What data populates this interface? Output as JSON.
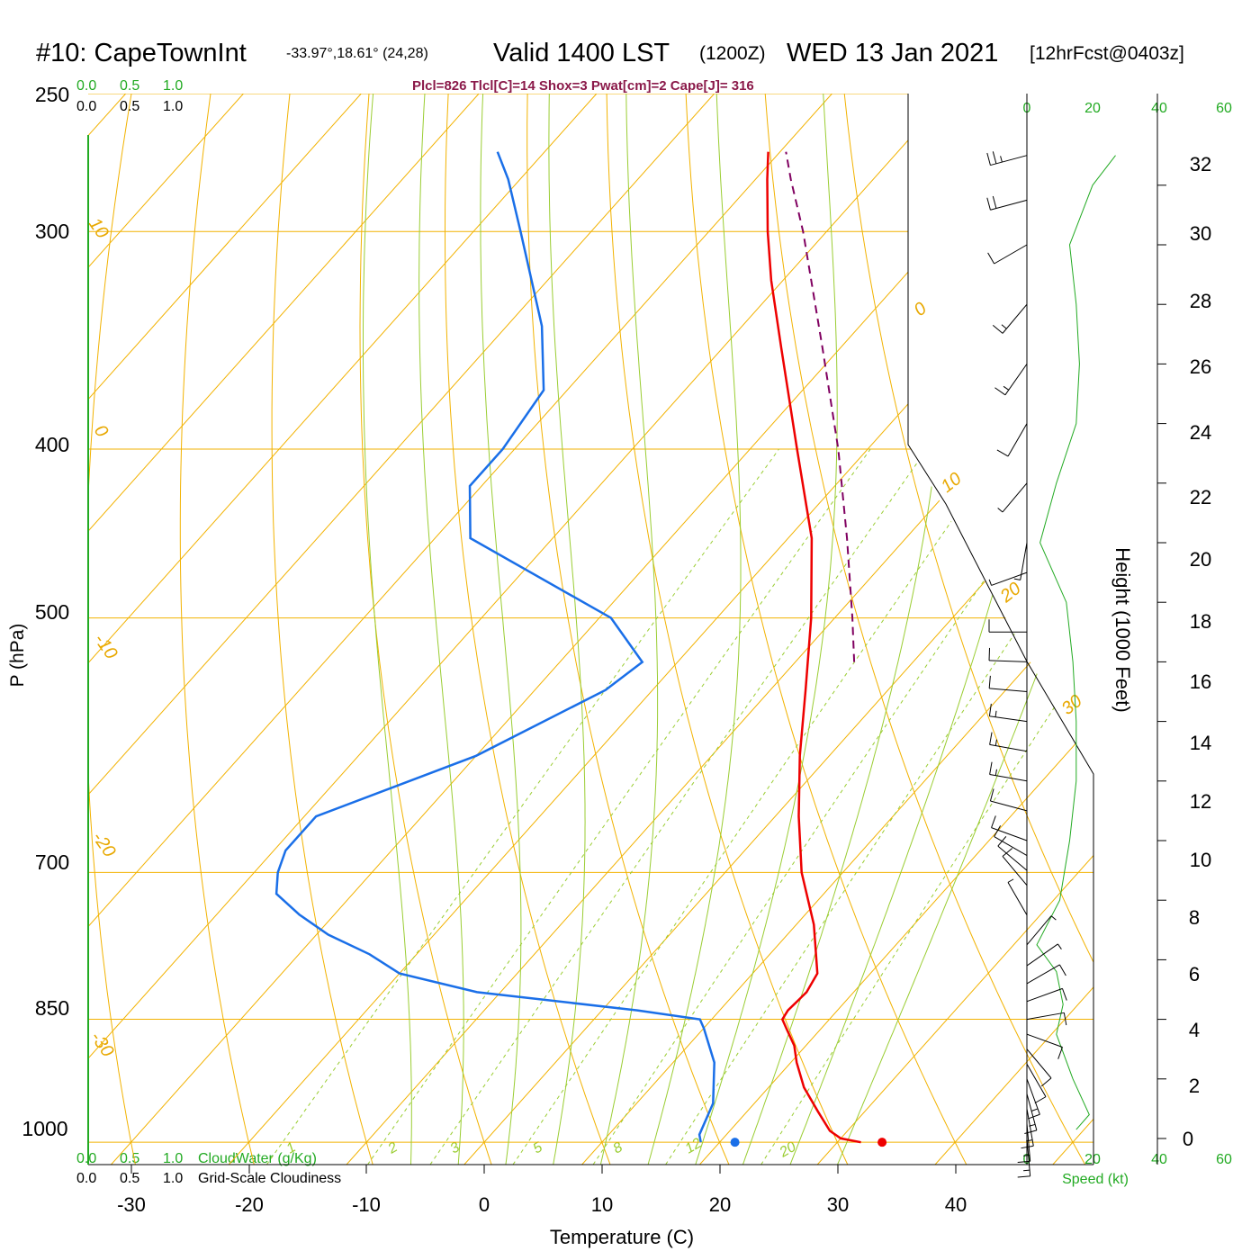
{
  "header": {
    "station": "#10: CapeTownInt",
    "coords": "-33.97°,18.61° (24,28)",
    "valid": "Valid 1400 LST",
    "zulu": "(1200Z)",
    "date": "WED 13 Jan 2021",
    "forecast": "[12hrFcst@0403z]"
  },
  "indices": "Plcl=826 Tlcl[C]=14 Shox=3 Pwat[cm]=2 Cape[J]= 316",
  "cloud_scale": {
    "top_green": [
      "0.0",
      "0.5",
      "1.0"
    ],
    "top_black": [
      "0.0",
      "0.5",
      "1.0"
    ],
    "bottom_green": [
      "0.0",
      "0.5",
      "1.0"
    ],
    "bottom_black": [
      "0.0",
      "0.5",
      "1.0"
    ],
    "cloudwater_label": "CloudWater (g/Kg)",
    "cloudiness_label": "Grid-Scale Cloudiness"
  },
  "wind_scale": {
    "top_ticks": [
      "0",
      "20",
      "40",
      "60"
    ],
    "bottom_ticks": [
      "0",
      "20",
      "40",
      "60"
    ],
    "label": "Speed (kt)"
  },
  "colors": {
    "isobar": "#f2b200",
    "isotherm": "#f2b200",
    "dry_adiabat": "#f2b200",
    "moist_adiabat": "#9acd32",
    "mixing_ratio": "#9acd32",
    "temperature": "#ee0000",
    "dewpoint": "#1a6fe8",
    "parcel": "#800060",
    "wind_speed": "#22aa22",
    "index_text": "#8b1a4a"
  },
  "chart_data": {
    "type": "skew-t log-p sounding",
    "xlabel": "Temperature (C)",
    "ylabel": "P (hPa)",
    "y2label": "Height (1000 Feet)",
    "x_ticks": [
      "-30",
      "-20",
      "-10",
      "0",
      "10",
      "20",
      "30",
      "40"
    ],
    "p_ticks": [
      "250",
      "300",
      "400",
      "500",
      "700",
      "850",
      "1000"
    ],
    "height_ticks": [
      "0",
      "2",
      "4",
      "6",
      "8",
      "10",
      "12",
      "14",
      "16",
      "18",
      "20",
      "22",
      "24",
      "26",
      "28",
      "30",
      "32"
    ],
    "isotherm_labels": [
      "10",
      "0",
      "-10",
      "-20",
      "-30"
    ],
    "isotherm_right_labels": [
      "0",
      "10",
      "20",
      "30"
    ],
    "mixing_ratio_labels": [
      "1",
      "2",
      "3",
      "5",
      "8",
      "12",
      "20"
    ],
    "xlim": [
      -34,
      36
    ],
    "plim": [
      1030,
      250
    ],
    "temperature": [
      {
        "p": 1000,
        "t": 32.0
      },
      {
        "p": 995,
        "t": 30.0
      },
      {
        "p": 985,
        "t": 28.5
      },
      {
        "p": 960,
        "t": 26.0
      },
      {
        "p": 930,
        "t": 23.0
      },
      {
        "p": 900,
        "t": 20.5
      },
      {
        "p": 880,
        "t": 19.0
      },
      {
        "p": 860,
        "t": 17.0
      },
      {
        "p": 850,
        "t": 16.0
      },
      {
        "p": 840,
        "t": 15.8
      },
      {
        "p": 820,
        "t": 16.0
      },
      {
        "p": 800,
        "t": 15.5
      },
      {
        "p": 750,
        "t": 11.5
      },
      {
        "p": 700,
        "t": 6.5
      },
      {
        "p": 650,
        "t": 2.0
      },
      {
        "p": 600,
        "t": -2.5
      },
      {
        "p": 550,
        "t": -7.0
      },
      {
        "p": 500,
        "t": -12.0
      },
      {
        "p": 450,
        "t": -18.0
      },
      {
        "p": 400,
        "t": -26.0
      },
      {
        "p": 350,
        "t": -35.0
      },
      {
        "p": 320,
        "t": -41.0
      },
      {
        "p": 300,
        "t": -45.0
      },
      {
        "p": 280,
        "t": -49.0
      },
      {
        "p": 270,
        "t": -51.0
      }
    ],
    "dewpoint": [
      {
        "p": 1000,
        "t": 18.4
      },
      {
        "p": 990,
        "t": 17.7
      },
      {
        "p": 950,
        "t": 16.5
      },
      {
        "p": 900,
        "t": 13.5
      },
      {
        "p": 860,
        "t": 10.0
      },
      {
        "p": 850,
        "t": 9.0
      },
      {
        "p": 840,
        "t": 3.0
      },
      {
        "p": 820,
        "t": -12.0
      },
      {
        "p": 800,
        "t": -20.0
      },
      {
        "p": 780,
        "t": -24.0
      },
      {
        "p": 760,
        "t": -29.0
      },
      {
        "p": 740,
        "t": -33.0
      },
      {
        "p": 720,
        "t": -36.5
      },
      {
        "p": 700,
        "t": -38.0
      },
      {
        "p": 680,
        "t": -39.0
      },
      {
        "p": 650,
        "t": -39.0
      },
      {
        "p": 600,
        "t": -30.0
      },
      {
        "p": 550,
        "t": -24.0
      },
      {
        "p": 530,
        "t": -23.0
      },
      {
        "p": 500,
        "t": -29.0
      },
      {
        "p": 450,
        "t": -47.0
      },
      {
        "p": 420,
        "t": -51.0
      },
      {
        "p": 400,
        "t": -51.0
      },
      {
        "p": 370,
        "t": -52.0
      },
      {
        "p": 340,
        "t": -57.0
      },
      {
        "p": 300,
        "t": -66.0
      },
      {
        "p": 280,
        "t": -71.0
      },
      {
        "p": 270,
        "t": -74.0
      }
    ],
    "parcel": [
      {
        "p": 530,
        "t": -5.0
      },
      {
        "p": 500,
        "t": -8.5
      },
      {
        "p": 450,
        "t": -15.0
      },
      {
        "p": 400,
        "t": -22.5
      },
      {
        "p": 350,
        "t": -31.5
      },
      {
        "p": 300,
        "t": -42.0
      },
      {
        "p": 280,
        "t": -47.0
      },
      {
        "p": 270,
        "t": -49.5
      }
    ],
    "surface_temperature": 33.8,
    "surface_dewpoint": 21.3,
    "wind_speed_kt": [
      {
        "h": 0.3,
        "s": 15
      },
      {
        "h": 0.8,
        "s": 19
      },
      {
        "h": 2.0,
        "s": 14
      },
      {
        "h": 3.5,
        "s": 9
      },
      {
        "h": 4.5,
        "s": 11
      },
      {
        "h": 5.6,
        "s": 9
      },
      {
        "h": 6.5,
        "s": 3
      },
      {
        "h": 8.0,
        "s": 10
      },
      {
        "h": 10.0,
        "s": 13
      },
      {
        "h": 12.0,
        "s": 15
      },
      {
        "h": 14.0,
        "s": 15
      },
      {
        "h": 16.0,
        "s": 14
      },
      {
        "h": 18.0,
        "s": 12
      },
      {
        "h": 20.0,
        "s": 4
      },
      {
        "h": 22.0,
        "s": 9
      },
      {
        "h": 24.0,
        "s": 15
      },
      {
        "h": 26.0,
        "s": 16
      },
      {
        "h": 28.0,
        "s": 15
      },
      {
        "h": 30.0,
        "s": 13
      },
      {
        "h": 32.0,
        "s": 20
      },
      {
        "h": 33.0,
        "s": 27
      }
    ],
    "wind_barbs": [
      {
        "h": 0.0,
        "dir": 175,
        "spd": 15
      },
      {
        "h": 0.5,
        "dir": 175,
        "spd": 18
      },
      {
        "h": 1.0,
        "dir": 170,
        "spd": 18
      },
      {
        "h": 1.5,
        "dir": 165,
        "spd": 17
      },
      {
        "h": 2.0,
        "dir": 160,
        "spd": 15
      },
      {
        "h": 2.5,
        "dir": 150,
        "spd": 13
      },
      {
        "h": 3.0,
        "dir": 140,
        "spd": 11
      },
      {
        "h": 3.5,
        "dir": 110,
        "spd": 10
      },
      {
        "h": 4.0,
        "dir": 80,
        "spd": 10
      },
      {
        "h": 4.6,
        "dir": 70,
        "spd": 11
      },
      {
        "h": 5.2,
        "dir": 60,
        "spd": 10
      },
      {
        "h": 5.8,
        "dir": 55,
        "spd": 9
      },
      {
        "h": 6.5,
        "dir": 40,
        "spd": 5
      },
      {
        "h": 7.5,
        "dir": 330,
        "spd": 8
      },
      {
        "h": 8.5,
        "dir": 320,
        "spd": 10
      },
      {
        "h": 9.0,
        "dir": 310,
        "spd": 12
      },
      {
        "h": 9.5,
        "dir": 300,
        "spd": 13
      },
      {
        "h": 10.0,
        "dir": 290,
        "spd": 13
      },
      {
        "h": 11.0,
        "dir": 285,
        "spd": 14
      },
      {
        "h": 12.0,
        "dir": 280,
        "spd": 15
      },
      {
        "h": 13.0,
        "dir": 280,
        "spd": 15
      },
      {
        "h": 14.0,
        "dir": 278,
        "spd": 15
      },
      {
        "h": 15.0,
        "dir": 275,
        "spd": 14
      },
      {
        "h": 16.0,
        "dir": 272,
        "spd": 14
      },
      {
        "h": 17.0,
        "dir": 270,
        "spd": 12
      },
      {
        "h": 19.0,
        "dir": 250,
        "spd": 5
      },
      {
        "h": 20.0,
        "dir": 190,
        "spd": 5
      },
      {
        "h": 22.0,
        "dir": 220,
        "spd": 9
      },
      {
        "h": 24.0,
        "dir": 210,
        "spd": 14
      },
      {
        "h": 26.0,
        "dir": 215,
        "spd": 16
      },
      {
        "h": 28.0,
        "dir": 220,
        "spd": 15
      },
      {
        "h": 30.0,
        "dir": 240,
        "spd": 13
      },
      {
        "h": 31.5,
        "dir": 255,
        "spd": 20
      },
      {
        "h": 33.0,
        "dir": 255,
        "spd": 25
      }
    ]
  }
}
